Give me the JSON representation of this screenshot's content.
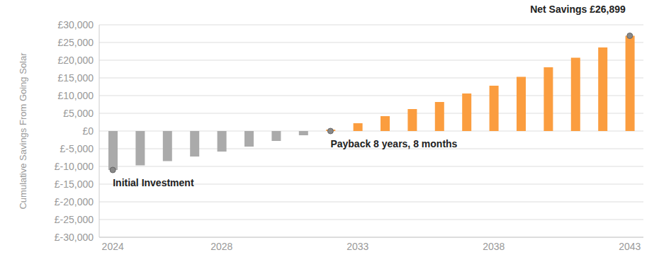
{
  "chart_data": {
    "type": "bar",
    "y_label": "Cumulative Savings From Going Solar",
    "categories": [
      "2024",
      null,
      null,
      null,
      "2028",
      null,
      null,
      null,
      null,
      "2033",
      null,
      null,
      null,
      null,
      "2038",
      null,
      null,
      null,
      null,
      "2043"
    ],
    "values": [
      -11000,
      -9700,
      -8500,
      -7200,
      -5800,
      -4400,
      -2800,
      -1200,
      400,
      2200,
      4200,
      6200,
      8200,
      10600,
      12800,
      15300,
      18000,
      20700,
      23600,
      26899
    ],
    "colors": [
      "#aaaaaa",
      "#aaaaaa",
      "#aaaaaa",
      "#aaaaaa",
      "#aaaaaa",
      "#aaaaaa",
      "#aaaaaa",
      "#aaaaaa",
      "#fb9d3f",
      "#fb9d3f",
      "#fb9d3f",
      "#fb9d3f",
      "#fb9d3f",
      "#fb9d3f",
      "#fb9d3f",
      "#fb9d3f",
      "#fb9d3f",
      "#fb9d3f",
      "#fb9d3f",
      "#fb9d3f"
    ],
    "ylim": [
      -30000,
      30000
    ],
    "yticks": [
      {
        "value": -30000,
        "label": "£-30,000"
      },
      {
        "value": -25000,
        "label": "£-25,000"
      },
      {
        "value": -20000,
        "label": "£-20,000"
      },
      {
        "value": -15000,
        "label": "£-15,000"
      },
      {
        "value": -10000,
        "label": "£-10,000"
      },
      {
        "value": -5000,
        "label": "£-5,000"
      },
      {
        "value": 0,
        "label": "£0"
      },
      {
        "value": 5000,
        "label": "£5,000"
      },
      {
        "value": 10000,
        "label": "£10,000"
      },
      {
        "value": 15000,
        "label": "£15,000"
      },
      {
        "value": 20000,
        "label": "£20,000"
      },
      {
        "value": 25000,
        "label": "£25,000"
      },
      {
        "value": 30000,
        "label": "£30,000"
      }
    ],
    "grid": true,
    "annotations": [
      {
        "text": "Initial Investment",
        "x": 0,
        "y": -11000
      },
      {
        "text": "Payback 8 years, 8 months",
        "x": 8,
        "y": 0
      },
      {
        "text": "Net Savings £26,899",
        "x": 19,
        "y": 26899
      }
    ]
  }
}
